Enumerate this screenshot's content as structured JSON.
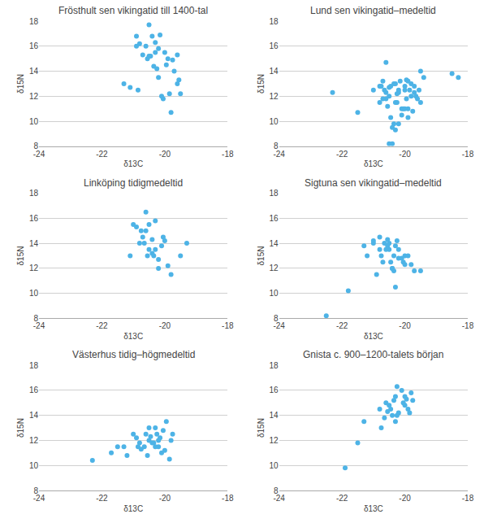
{
  "chart_data": [
    {
      "type": "scatter",
      "title": "Frösthult sen vikingatid till 1400-tal",
      "x": [
        -21.3,
        -21.1,
        -20.9,
        -20.8,
        -20.7,
        -20.6,
        -20.55,
        -20.5,
        -20.45,
        -20.4,
        -20.35,
        -20.3,
        -20.25,
        -20.2,
        -20.15,
        -20.1,
        -20.05,
        -20.0,
        -19.95,
        -19.9,
        -19.85,
        -19.8,
        -19.75,
        -19.7,
        -19.6,
        -20.85,
        -20.5,
        -20.3,
        -20.9,
        -20.2,
        -19.5,
        -19.6,
        -19.55
      ],
      "values": [
        13.0,
        12.7,
        16.8,
        16.2,
        15.3,
        16.0,
        15.0,
        17.7,
        15.2,
        16.8,
        14.4,
        15.5,
        14.2,
        15.8,
        16.9,
        12.0,
        11.8,
        15.5,
        14.5,
        15.0,
        12.2,
        10.7,
        14.9,
        14.0,
        13.0,
        12.5,
        15.2,
        16.3,
        16.0,
        13.5,
        12.2,
        15.3,
        13.3
      ],
      "xlabel": "δ13C",
      "ylabel": "δ15N",
      "color": "#4db3e6",
      "xlim": [
        -24,
        -18
      ],
      "ylim": [
        8,
        18
      ],
      "xticks": [
        -24,
        -22,
        -20,
        -18
      ],
      "yticks": [
        8,
        10,
        12,
        14,
        16,
        18
      ],
      "grid": "y"
    },
    {
      "type": "scatter",
      "title": "Lund sen vikingatid–medeltid",
      "x": [
        -22.3,
        -21.5,
        -20.8,
        -20.75,
        -20.7,
        -20.65,
        -20.6,
        -20.55,
        -20.5,
        -20.45,
        -20.4,
        -20.35,
        -20.3,
        -20.25,
        -20.2,
        -20.15,
        -20.1,
        -20.05,
        -20.0,
        -19.95,
        -19.9,
        -19.85,
        -19.8,
        -19.75,
        -19.7,
        -19.65,
        -19.6,
        -19.55,
        -19.5,
        -19.4,
        -18.3,
        -20.6,
        -20.5,
        -20.4,
        -20.3,
        -20.2,
        -20.1,
        -20.0,
        -19.9,
        -19.8,
        -19.9,
        -20.2,
        -20.3,
        -20.5,
        -21.0,
        -20.8,
        -20.7,
        -20.6,
        -20.0,
        -19.7,
        -19.5,
        -18.5,
        -20.45,
        -20.35,
        -20.25,
        -19.95
      ],
      "values": [
        12.3,
        10.7,
        11.5,
        12.8,
        13.2,
        12.5,
        11.8,
        11.2,
        12.0,
        12.8,
        9.5,
        9.8,
        13.0,
        11.5,
        12.5,
        13.2,
        10.5,
        11.0,
        12.8,
        13.3,
        11.0,
        12.5,
        13.0,
        10.8,
        12.3,
        12.0,
        11.8,
        12.5,
        14.0,
        13.5,
        13.5,
        14.7,
        8.2,
        8.2,
        9.3,
        9.8,
        11.0,
        11.0,
        10.3,
        12.0,
        13.2,
        12.3,
        11.5,
        12.7,
        12.5,
        12.8,
        11.8,
        12.3,
        12.5,
        12.8,
        11.5,
        13.8,
        10.3,
        13.0,
        12.2,
        11.8
      ],
      "xlabel": "δ13C",
      "ylabel": "δ15N",
      "color": "#4db3e6",
      "xlim": [
        -24,
        -18
      ],
      "ylim": [
        8,
        18
      ],
      "xticks": [
        -24,
        -22,
        -20,
        -18
      ],
      "yticks": [
        8,
        10,
        12,
        14,
        16,
        18
      ],
      "grid": "y"
    },
    {
      "type": "scatter",
      "title": "Linköping tidigmedeltid",
      "x": [
        -21.1,
        -21.0,
        -20.9,
        -20.8,
        -20.75,
        -20.7,
        -20.65,
        -20.6,
        -20.55,
        -20.5,
        -20.4,
        -20.3,
        -20.2,
        -20.1,
        -20.05,
        -20.0,
        -19.9,
        -19.8,
        -19.5,
        -19.3,
        -20.6,
        -20.4,
        -20.5,
        -20.35,
        -20.3,
        -20.2
      ],
      "values": [
        13.0,
        15.5,
        15.3,
        14.0,
        15.0,
        14.5,
        14.0,
        16.5,
        13.0,
        15.5,
        13.2,
        13.5,
        12.0,
        13.8,
        14.5,
        14.2,
        12.2,
        11.5,
        13.0,
        14.0,
        15.0,
        14.3,
        13.5,
        13.0,
        15.8,
        12.7
      ],
      "xlabel": "δ13C",
      "ylabel": "δ15N",
      "color": "#4db3e6",
      "xlim": [
        -24,
        -18
      ],
      "ylim": [
        8,
        18
      ],
      "xticks": [
        -24,
        -22,
        -20,
        -18
      ],
      "yticks": [
        8,
        10,
        12,
        14,
        16,
        18
      ],
      "grid": "y"
    },
    {
      "type": "scatter",
      "title": "Sigtuna sen vikingatid–medeltid",
      "x": [
        -22.5,
        -21.8,
        -21.3,
        -21.0,
        -20.8,
        -20.75,
        -20.65,
        -20.55,
        -20.5,
        -20.45,
        -20.4,
        -20.35,
        -20.3,
        -20.25,
        -20.2,
        -20.05,
        -20.0,
        -19.8,
        -19.7,
        -19.5,
        -20.6,
        -20.5,
        -20.4,
        -20.8,
        -21.2,
        -20.9,
        -20.3,
        -20.1,
        -20.2,
        -19.9,
        -20.0,
        -21.0,
        -20.7,
        -20.35,
        -20.55
      ],
      "values": [
        8.2,
        10.2,
        13.8,
        14.0,
        13.5,
        13.0,
        14.0,
        14.3,
        13.5,
        12.5,
        12.0,
        13.0,
        13.8,
        14.2,
        12.8,
        12.5,
        13.0,
        12.3,
        11.8,
        11.8,
        13.5,
        14.0,
        12.0,
        14.5,
        13.0,
        11.5,
        10.5,
        12.8,
        13.5,
        13.0,
        12.3,
        14.2,
        12.5,
        11.8,
        13.8
      ],
      "xlabel": "δ13C",
      "ylabel": "δ15N",
      "color": "#4db3e6",
      "xlim": [
        -24,
        -18
      ],
      "ylim": [
        8,
        18
      ],
      "xticks": [
        -24,
        -22,
        -20,
        -18
      ],
      "yticks": [
        8,
        10,
        12,
        14,
        16,
        18
      ],
      "grid": "y"
    },
    {
      "type": "scatter",
      "title": "Västerhus tidig–högmedeltid",
      "x": [
        -22.3,
        -21.7,
        -21.3,
        -21.2,
        -21.0,
        -20.85,
        -20.8,
        -20.75,
        -20.65,
        -20.55,
        -20.5,
        -20.45,
        -20.35,
        -20.3,
        -20.25,
        -20.2,
        -20.15,
        -20.1,
        -20.05,
        -19.95,
        -19.85,
        -19.8,
        -19.75,
        -21.5,
        -20.9,
        -20.4,
        -20.6,
        -20.3,
        -20.5,
        -20.2,
        -20.0
      ],
      "values": [
        10.4,
        11.0,
        11.5,
        10.8,
        12.5,
        11.5,
        11.8,
        11.3,
        11.5,
        10.8,
        12.0,
        12.3,
        11.8,
        13.0,
        12.5,
        11.5,
        12.2,
        11.0,
        12.8,
        13.5,
        10.5,
        12.0,
        12.5,
        11.5,
        12.2,
        11.8,
        12.5,
        11.5,
        13.0,
        12.0,
        11.2
      ],
      "xlabel": "δ13C",
      "ylabel": "δ15N",
      "color": "#4db3e6",
      "xlim": [
        -24,
        -18
      ],
      "ylim": [
        8,
        18
      ],
      "xticks": [
        -24,
        -22,
        -20,
        -18
      ],
      "yticks": [
        8,
        10,
        12,
        14,
        16,
        18
      ],
      "grid": "y"
    },
    {
      "type": "scatter",
      "title": "Gnista c. 900–1200-talets början",
      "x": [
        -21.9,
        -21.5,
        -21.3,
        -20.8,
        -20.6,
        -20.5,
        -20.3,
        -20.2,
        -20.1,
        -20.0,
        -19.9,
        -19.8,
        -19.75,
        -20.75,
        -20.4,
        -20.35,
        -20.55,
        -20.25,
        -20.0,
        -19.95,
        -20.3,
        -20.65,
        -20.45,
        -20.25,
        -20.05,
        -19.85
      ],
      "values": [
        9.8,
        11.8,
        13.5,
        14.5,
        15.0,
        14.8,
        15.5,
        14.2,
        16.0,
        15.5,
        14.5,
        15.8,
        15.2,
        13.0,
        14.0,
        15.2,
        14.3,
        16.3,
        14.8,
        15.3,
        13.5,
        13.8,
        14.5,
        14.0,
        15.0,
        14.2
      ],
      "xlabel": "δ13C",
      "ylabel": "δ15N",
      "color": "#4db3e6",
      "xlim": [
        -24,
        -18
      ],
      "ylim": [
        8,
        18
      ],
      "xticks": [
        -24,
        -22,
        -20,
        -18
      ],
      "yticks": [
        8,
        10,
        12,
        14,
        16,
        18
      ],
      "grid": "y"
    }
  ]
}
